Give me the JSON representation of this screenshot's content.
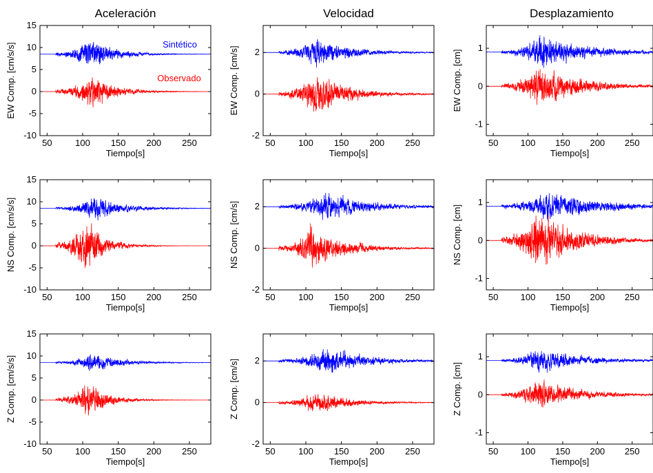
{
  "columns": [
    {
      "title": "Aceleración"
    },
    {
      "title": "Velocidad"
    },
    {
      "title": "Desplazamiento"
    }
  ],
  "legend": {
    "synthetic": "Sintético",
    "observed": "Observado"
  },
  "colors": {
    "synthetic": "#0000ff",
    "observed": "#ff0000",
    "axes": "#000000"
  },
  "chart_data": [
    {
      "type": "line",
      "title": "Aceleración",
      "xlabel": "Tiempo[s]",
      "ylabel": "EW Comp. [cm/s/s]",
      "xlim": [
        40,
        280
      ],
      "ylim": [
        -10,
        15
      ],
      "xticks": [
        50,
        100,
        150,
        200,
        250
      ],
      "yticks": [
        -10,
        -5,
        0,
        5,
        10,
        15
      ],
      "series": [
        {
          "name": "Sintético",
          "baseline": 8.5,
          "onset": 62,
          "peak_time": 110,
          "peak_amp": 5.8,
          "decay": 35,
          "color": "blue"
        },
        {
          "name": "Observado",
          "baseline": 0,
          "onset": 62,
          "peak_time": 112,
          "peak_amp": 6.5,
          "decay": 32,
          "color": "red"
        }
      ]
    },
    {
      "type": "line",
      "title": "Velocidad",
      "xlabel": "Tiempo[s]",
      "ylabel": "EW Comp. [cm/s]",
      "xlim": [
        40,
        280
      ],
      "ylim": [
        -2,
        3.3
      ],
      "xticks": [
        50,
        100,
        150,
        200,
        250
      ],
      "yticks": [
        -2,
        0,
        2
      ],
      "series": [
        {
          "name": "Sintético",
          "baseline": 2,
          "onset": 62,
          "peak_time": 112,
          "peak_amp": 1.2,
          "decay": 50,
          "color": "blue"
        },
        {
          "name": "Observado",
          "baseline": 0,
          "onset": 62,
          "peak_time": 112,
          "peak_amp": 1.7,
          "decay": 45,
          "color": "red"
        }
      ]
    },
    {
      "type": "line",
      "title": "Desplazamiento",
      "xlabel": "Tiempo[s]",
      "ylabel": "EW Comp. [cm]",
      "xlim": [
        40,
        280
      ],
      "ylim": [
        -1.3,
        1.6
      ],
      "xticks": [
        50,
        100,
        150,
        200,
        250
      ],
      "yticks": [
        -1,
        0,
        1
      ],
      "series": [
        {
          "name": "Sintético",
          "baseline": 0.9,
          "onset": 62,
          "peak_time": 118,
          "peak_amp": 0.7,
          "decay": 70,
          "color": "blue"
        },
        {
          "name": "Observado",
          "baseline": 0,
          "onset": 62,
          "peak_time": 115,
          "peak_amp": 0.9,
          "decay": 60,
          "color": "red"
        }
      ]
    },
    {
      "type": "line",
      "title": "",
      "xlabel": "Tiempo[s]",
      "ylabel": "NS Comp. [cm/s/s]",
      "xlim": [
        40,
        280
      ],
      "ylim": [
        -10,
        15
      ],
      "xticks": [
        50,
        100,
        150,
        200,
        250
      ],
      "yticks": [
        -10,
        -5,
        0,
        5,
        10,
        15
      ],
      "series": [
        {
          "name": "Sintético",
          "baseline": 8.5,
          "onset": 62,
          "peak_time": 118,
          "peak_amp": 4.8,
          "decay": 38,
          "color": "blue"
        },
        {
          "name": "Observado",
          "baseline": 0,
          "onset": 62,
          "peak_time": 106,
          "peak_amp": 10,
          "decay": 25,
          "color": "red"
        }
      ]
    },
    {
      "type": "line",
      "title": "",
      "xlabel": "Tiempo[s]",
      "ylabel": "NS Comp. [cm/s]",
      "xlim": [
        40,
        280
      ],
      "ylim": [
        -2,
        3.3
      ],
      "xticks": [
        50,
        100,
        150,
        200,
        250
      ],
      "yticks": [
        -2,
        0,
        2
      ],
      "series": [
        {
          "name": "Sintético",
          "baseline": 2,
          "onset": 62,
          "peak_time": 130,
          "peak_amp": 1.2,
          "decay": 55,
          "color": "blue"
        },
        {
          "name": "Observado",
          "baseline": 0,
          "onset": 62,
          "peak_time": 108,
          "peak_amp": 1.7,
          "decay": 45,
          "color": "red"
        }
      ]
    },
    {
      "type": "line",
      "title": "",
      "xlabel": "Tiempo[s]",
      "ylabel": "NS Comp. [cm]",
      "xlim": [
        40,
        280
      ],
      "ylim": [
        -1.3,
        1.6
      ],
      "xticks": [
        50,
        100,
        150,
        200,
        250
      ],
      "yticks": [
        -1,
        0,
        1
      ],
      "series": [
        {
          "name": "Sintético",
          "baseline": 0.9,
          "onset": 62,
          "peak_time": 130,
          "peak_amp": 0.7,
          "decay": 70,
          "color": "blue"
        },
        {
          "name": "Observado",
          "baseline": 0,
          "onset": 62,
          "peak_time": 112,
          "peak_amp": 1.3,
          "decay": 55,
          "color": "red"
        }
      ]
    },
    {
      "type": "line",
      "title": "",
      "xlabel": "Tiempo[s]",
      "ylabel": "Z Comp. [cm/s/s]",
      "xlim": [
        40,
        280
      ],
      "ylim": [
        -10,
        15
      ],
      "xticks": [
        50,
        100,
        150,
        200,
        250
      ],
      "yticks": [
        -10,
        -5,
        0,
        5,
        10,
        15
      ],
      "series": [
        {
          "name": "Sintético",
          "baseline": 8.5,
          "onset": 62,
          "peak_time": 115,
          "peak_amp": 3.5,
          "decay": 40,
          "color": "blue"
        },
        {
          "name": "Observado",
          "baseline": 0,
          "onset": 62,
          "peak_time": 108,
          "peak_amp": 6.5,
          "decay": 28,
          "color": "red"
        }
      ]
    },
    {
      "type": "line",
      "title": "",
      "xlabel": "Tiempo[s]",
      "ylabel": "Z Comp. [cm/s]",
      "xlim": [
        40,
        280
      ],
      "ylim": [
        -2,
        3.3
      ],
      "xticks": [
        50,
        100,
        150,
        200,
        250
      ],
      "yticks": [
        -2,
        0,
        2
      ],
      "series": [
        {
          "name": "Sintético",
          "baseline": 2,
          "onset": 62,
          "peak_time": 128,
          "peak_amp": 1.1,
          "decay": 55,
          "color": "blue"
        },
        {
          "name": "Observado",
          "baseline": 0,
          "onset": 62,
          "peak_time": 115,
          "peak_amp": 0.9,
          "decay": 45,
          "color": "red"
        }
      ]
    },
    {
      "type": "line",
      "title": "",
      "xlabel": "Tiempo[s]",
      "ylabel": "Z Comp. [cm]",
      "xlim": [
        40,
        280
      ],
      "ylim": [
        -1.3,
        1.6
      ],
      "xticks": [
        50,
        100,
        150,
        200,
        250
      ],
      "yticks": [
        -1,
        0,
        1
      ],
      "series": [
        {
          "name": "Sintético",
          "baseline": 0.9,
          "onset": 62,
          "peak_time": 115,
          "peak_amp": 0.55,
          "decay": 65,
          "color": "blue"
        },
        {
          "name": "Observado",
          "baseline": 0,
          "onset": 62,
          "peak_time": 118,
          "peak_amp": 0.7,
          "decay": 55,
          "color": "red"
        }
      ]
    }
  ]
}
